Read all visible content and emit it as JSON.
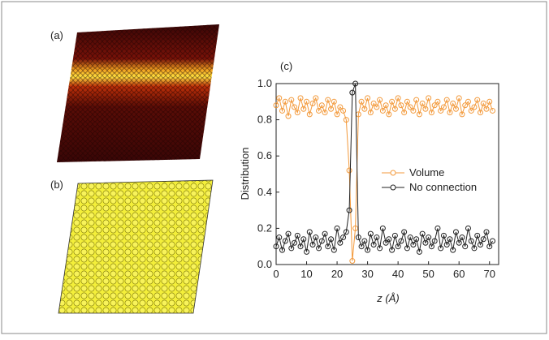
{
  "panel_labels": [
    "(a)",
    "(b)"
  ],
  "chart_data": {
    "type": "line",
    "panel_label": "(c)",
    "x_label": "z (Å)",
    "y_label": "Distribution",
    "x": [
      0,
      1,
      2,
      3,
      4,
      5,
      6,
      7,
      8,
      9,
      10,
      11,
      12,
      13,
      14,
      15,
      16,
      17,
      18,
      19,
      20,
      21,
      22,
      23,
      24,
      25,
      26,
      27,
      28,
      29,
      30,
      31,
      32,
      33,
      34,
      35,
      36,
      37,
      38,
      39,
      40,
      41,
      42,
      43,
      44,
      45,
      46,
      47,
      48,
      49,
      50,
      51,
      52,
      53,
      54,
      55,
      56,
      57,
      58,
      59,
      60,
      61,
      62,
      63,
      64,
      65,
      66,
      67,
      68,
      69,
      70,
      71
    ],
    "series": [
      {
        "name": "Volume",
        "color": "#f39a3c",
        "values": [
          0.88,
          0.92,
          0.85,
          0.9,
          0.82,
          0.91,
          0.87,
          0.84,
          0.92,
          0.86,
          0.9,
          0.83,
          0.89,
          0.92,
          0.85,
          0.88,
          0.84,
          0.91,
          0.86,
          0.9,
          0.83,
          0.87,
          0.85,
          0.8,
          0.52,
          0.02,
          0.2,
          0.83,
          0.9,
          0.86,
          0.92,
          0.84,
          0.89,
          0.87,
          0.91,
          0.85,
          0.88,
          0.83,
          0.9,
          0.86,
          0.92,
          0.88,
          0.84,
          0.9,
          0.87,
          0.85,
          0.91,
          0.83,
          0.89,
          0.86,
          0.92,
          0.84,
          0.88,
          0.9,
          0.85,
          0.87,
          0.91,
          0.84,
          0.89,
          0.86,
          0.92,
          0.83,
          0.88,
          0.9,
          0.85,
          0.87,
          0.91,
          0.84,
          0.89,
          0.86,
          0.9,
          0.85
        ]
      },
      {
        "name": "No connection",
        "color": "#222222",
        "values": [
          0.1,
          0.15,
          0.08,
          0.13,
          0.17,
          0.09,
          0.12,
          0.16,
          0.1,
          0.14,
          0.07,
          0.18,
          0.11,
          0.15,
          0.09,
          0.13,
          0.17,
          0.1,
          0.14,
          0.08,
          0.2,
          0.12,
          0.15,
          0.18,
          0.3,
          0.95,
          1.0,
          0.15,
          0.1,
          0.13,
          0.08,
          0.17,
          0.11,
          0.15,
          0.09,
          0.2,
          0.12,
          0.14,
          0.08,
          0.16,
          0.1,
          0.13,
          0.18,
          0.09,
          0.15,
          0.11,
          0.14,
          0.07,
          0.17,
          0.12,
          0.15,
          0.1,
          0.13,
          0.2,
          0.09,
          0.16,
          0.11,
          0.14,
          0.08,
          0.18,
          0.12,
          0.15,
          0.1,
          0.2,
          0.13,
          0.09,
          0.16,
          0.11,
          0.14,
          0.18,
          0.1,
          0.13
        ]
      }
    ],
    "xlim": [
      0,
      73
    ],
    "ylim": [
      0,
      1
    ],
    "xticks": [
      0,
      10,
      20,
      30,
      40,
      50,
      60,
      70
    ],
    "yticks": [
      {
        "value": 0,
        "label": "0.0"
      },
      {
        "value": 0.2,
        "label": "0.2"
      },
      {
        "value": 0.4,
        "label": "0.4"
      },
      {
        "value": 0.6,
        "label": "0.6"
      },
      {
        "value": 0.8,
        "label": "0.8"
      },
      {
        "value": 1,
        "label": "1.0"
      }
    ]
  }
}
